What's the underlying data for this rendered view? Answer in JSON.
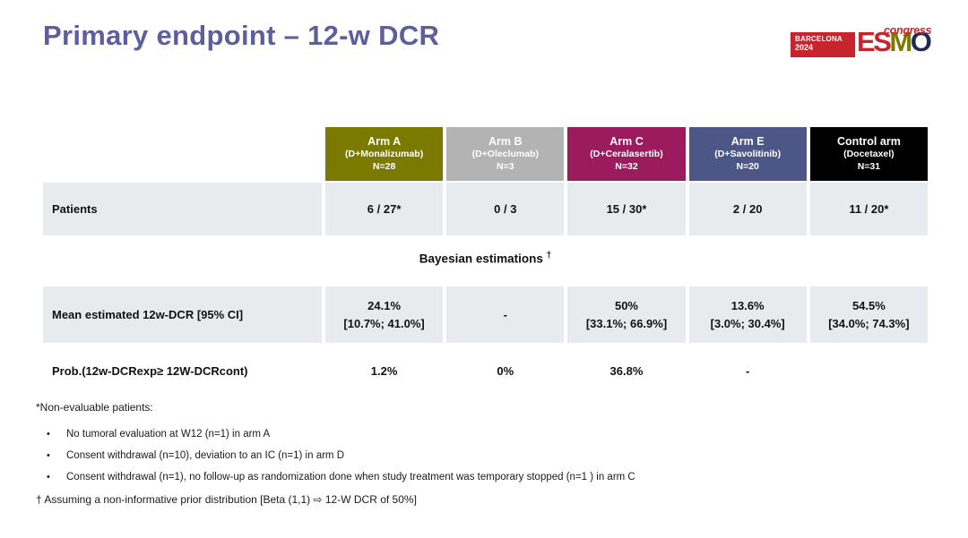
{
  "title": "Primary endpoint – 12-w DCR",
  "colors": {
    "title": "#5e5e9d",
    "row_bg": "#e8ebee",
    "logo_red": "#c8242e"
  },
  "logo": {
    "venue": "BARCELONA",
    "year": "2024",
    "badge_color": "#c8242e",
    "letters": [
      {
        "ch": "E",
        "color": "#c8242e"
      },
      {
        "ch": "S",
        "color": "#c8242e"
      },
      {
        "ch": "M",
        "color": "#7a7a00"
      },
      {
        "ch": "O",
        "color": "#1f2a55"
      }
    ],
    "congress": "congress",
    "congress_color": "#c8242e"
  },
  "table": {
    "columns": [
      {
        "arm": "Arm A",
        "drug": "(D+Monalizumab)",
        "n": "N=28",
        "color": "#7a7a00"
      },
      {
        "arm": "Arm B",
        "drug": "(D+Oleclumab)",
        "n": "N=3",
        "color": "#b3b3b3"
      },
      {
        "arm": "Arm C",
        "drug": "(D+Ceralasertib)",
        "n": "N=32",
        "color": "#9b1b5e"
      },
      {
        "arm": "Arm E",
        "drug": "(D+Savolitinib)",
        "n": "N=20",
        "color": "#4c5687"
      },
      {
        "arm": "Control arm",
        "drug": "(Docetaxel)",
        "n": "N=31",
        "color": "#000000"
      }
    ],
    "rows": {
      "patients": {
        "label": "Patients",
        "values": [
          "6 / 27*",
          "0 / 3",
          "15 / 30*",
          "2 / 20",
          "11 / 20*"
        ]
      },
      "bayesian": {
        "label": "Bayesian estimations",
        "dagger": "†"
      },
      "mean": {
        "label": "Mean estimated 12w-DCR [95% CI]",
        "values": [
          {
            "main": "24.1%",
            "ci": "[10.7%; 41.0%]"
          },
          {
            "main": "-",
            "ci": ""
          },
          {
            "main": "50%",
            "ci": "[33.1%; 66.9%]"
          },
          {
            "main": "13.6%",
            "ci": "[3.0%; 30.4%]"
          },
          {
            "main": "54.5%",
            "ci": "[34.0%; 74.3%]"
          }
        ]
      },
      "prob": {
        "label": "Prob.(12w-DCRexp≥ 12W-DCRcont)",
        "values": [
          "1.2%",
          "0%",
          "36.8%",
          "-",
          ""
        ]
      }
    }
  },
  "footnotes": {
    "asterisk_header": "*Non-evaluable patients:",
    "bullets": [
      "No tumoral evaluation at W12 (n=1) in arm A",
      "Consent withdrawal (n=10), deviation to an IC (n=1) in arm D",
      "Consent withdrawal (n=1), no follow-up as randomization done when study treatment was temporary stopped (n=1 ) in arm C"
    ],
    "dagger": "† Assuming a non-informative prior distribution [Beta (1,1) ⇨ 12-W DCR of 50%]"
  }
}
